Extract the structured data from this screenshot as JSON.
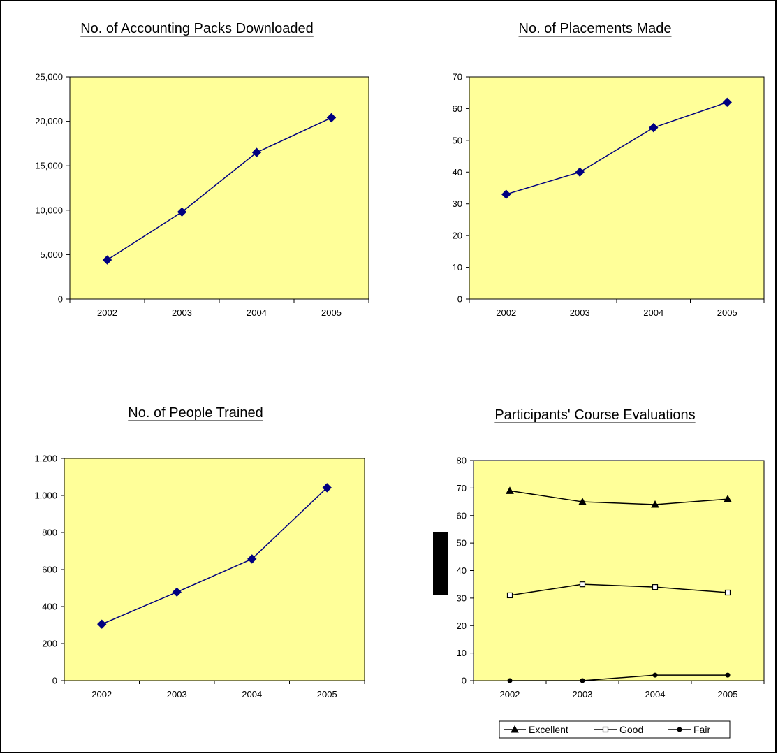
{
  "colors": {
    "plot_area": "#FFFF99",
    "line": "#000080",
    "marker": "#000080",
    "eval_line": "#000000"
  },
  "chart_data": [
    {
      "type": "line",
      "title": "No. of Accounting Packs Downloaded",
      "categories": [
        "2002",
        "2003",
        "2004",
        "2005"
      ],
      "series": [
        {
          "values": [
            4400,
            9800,
            16500,
            20400
          ],
          "marker": "diamond"
        }
      ],
      "ylim": [
        0,
        25000
      ],
      "yticks": [
        "0",
        "5,000",
        "10,000",
        "15,000",
        "20,000",
        "25,000"
      ],
      "grid": false
    },
    {
      "type": "line",
      "title": "No. of Placements Made",
      "categories": [
        "2002",
        "2003",
        "2004",
        "2005"
      ],
      "series": [
        {
          "values": [
            33,
            40,
            54,
            62
          ],
          "marker": "diamond"
        }
      ],
      "ylim": [
        0,
        70
      ],
      "yticks": [
        "0",
        "10",
        "20",
        "30",
        "40",
        "50",
        "60",
        "70"
      ],
      "grid": false
    },
    {
      "type": "line",
      "title": "No. of People Trained",
      "categories": [
        "2002",
        "2003",
        "2004",
        "2005"
      ],
      "series": [
        {
          "values": [
            305,
            478,
            657,
            1042
          ],
          "marker": "diamond"
        }
      ],
      "ylim": [
        0,
        1200
      ],
      "yticks": [
        "0",
        "200",
        "400",
        "600",
        "800",
        "1,000",
        "1,200"
      ],
      "grid": false
    },
    {
      "type": "line",
      "title": "Participants' Course Evaluations",
      "categories": [
        "2002",
        "2003",
        "2004",
        "2005"
      ],
      "series": [
        {
          "name": "Excellent",
          "values": [
            69,
            65,
            64,
            66
          ],
          "marker": "triangle"
        },
        {
          "name": "Good",
          "values": [
            31,
            35,
            34,
            32
          ],
          "marker": "square-open"
        },
        {
          "name": "Fair",
          "values": [
            0,
            0,
            2,
            2
          ],
          "marker": "circle"
        }
      ],
      "ylim": [
        0,
        80
      ],
      "yticks": [
        "0",
        "10",
        "20",
        "30",
        "40",
        "50",
        "60",
        "70",
        "80"
      ],
      "grid": false,
      "legend": "bottom"
    }
  ]
}
